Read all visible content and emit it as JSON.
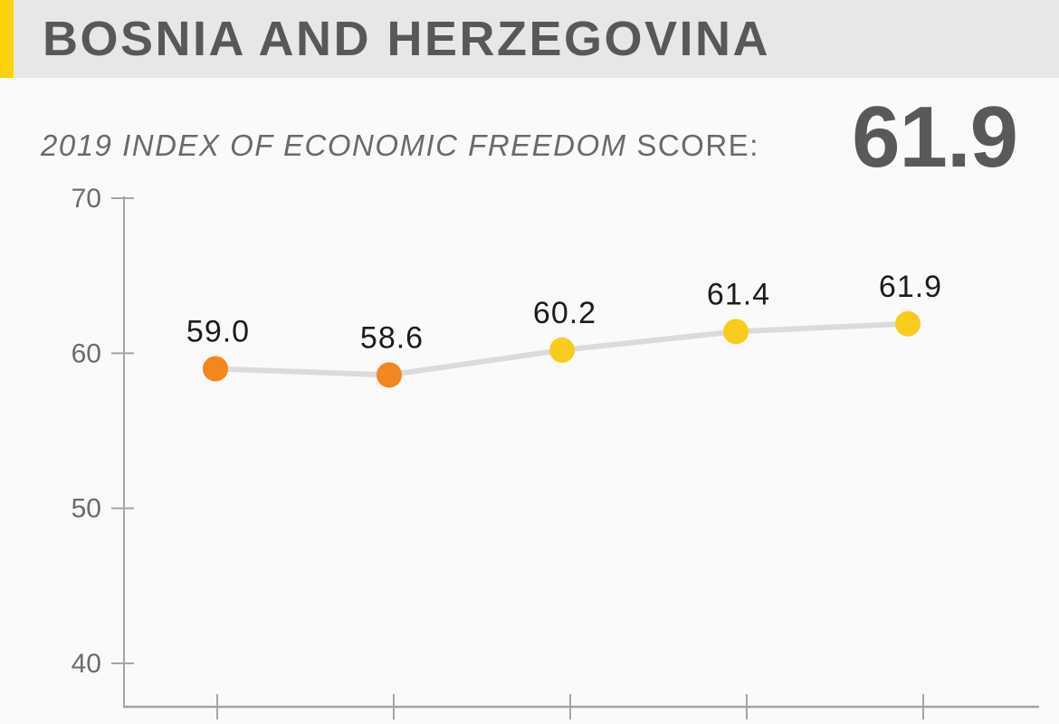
{
  "header": {
    "title": "BOSNIA AND HERZEGOVINA"
  },
  "score": {
    "label_italic": "2019 INDEX OF ECONOMIC FREEDOM ",
    "label_suffix": "SCORE:",
    "value": "61.9"
  },
  "chart_data": {
    "type": "line",
    "series_name": "Index of Economic Freedom score trend",
    "values": [
      59.0,
      58.6,
      60.2,
      61.4,
      61.9
    ],
    "value_labels": [
      "59.0",
      "58.6",
      "60.2",
      "61.4",
      "61.9"
    ],
    "marker_colors": [
      "orange",
      "orange",
      "yellow",
      "yellow",
      "yellow"
    ],
    "y_ticks": [
      70,
      60,
      50,
      40
    ],
    "ylim_shown": [
      40,
      70
    ],
    "x_tick_count": 5,
    "x_tick_labels_visible": false,
    "grid": false,
    "legend": false
  },
  "colors": {
    "background": "#FAFAFA",
    "header_bg": "#E7E7E8",
    "accent_yellow": "#FCD20C",
    "title_text": "#57585A",
    "subtitle_text": "#696A6D",
    "score_text": "#58595B",
    "marker_orange": "#F2861F",
    "marker_yellow": "#F8CC1C",
    "trend_line": "#DBDBDB",
    "axis": "#A4A4A7",
    "tick_label": "#6C6C6F",
    "value_label": "#1C1C1E"
  }
}
